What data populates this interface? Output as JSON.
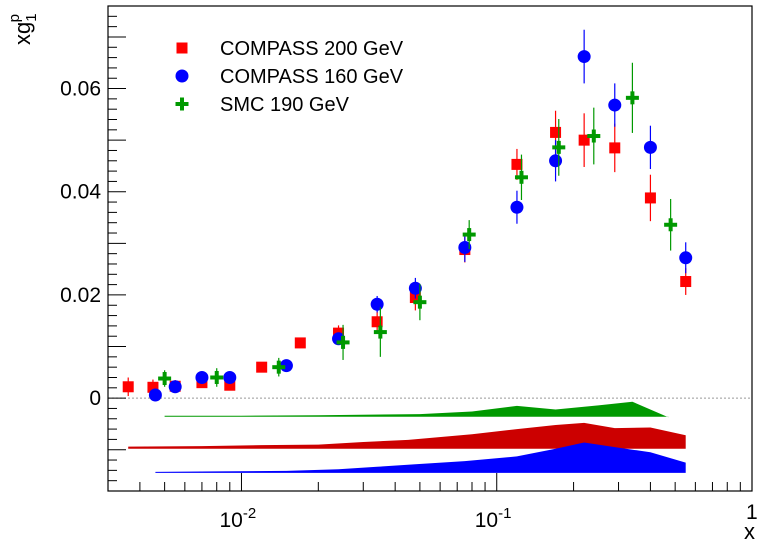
{
  "chart_data": {
    "type": "scatter",
    "title": "",
    "xlabel": "x",
    "ylabel": "xg",
    "ylabel_super": "p",
    "ylabel_sub": "1",
    "xscale": "log",
    "xlim": [
      0.003,
      1
    ],
    "ylim": [
      -0.018,
      0.076
    ],
    "grid": false,
    "legend_position": "top-left",
    "x_tick_labels": [
      {
        "x": 0.01,
        "base": "10",
        "exp": "-2"
      },
      {
        "x": 0.1,
        "base": "10",
        "exp": "-1"
      },
      {
        "x": 1,
        "base": "1",
        "exp": ""
      }
    ],
    "y_ticks": [
      {
        "y": 0,
        "label": "0"
      },
      {
        "y": 0.02,
        "label": "0.02"
      },
      {
        "y": 0.04,
        "label": "0.04"
      },
      {
        "y": 0.06,
        "label": "0.06"
      }
    ],
    "series": [
      {
        "name": "COMPASS 200 GeV",
        "color": "#ff0000",
        "marker": "square",
        "points": [
          {
            "x": 0.0036,
            "y": 0.0022,
            "err": 0.0018
          },
          {
            "x": 0.0045,
            "y": 0.0021,
            "err": 0.0015
          },
          {
            "x": 0.0055,
            "y": 0.0023,
            "err": 0.0012
          },
          {
            "x": 0.007,
            "y": 0.003,
            "err": 0.001
          },
          {
            "x": 0.009,
            "y": 0.0025,
            "err": 0.001
          },
          {
            "x": 0.012,
            "y": 0.006,
            "err": 0.001
          },
          {
            "x": 0.017,
            "y": 0.0107,
            "err": 0.001
          },
          {
            "x": 0.024,
            "y": 0.0126,
            "err": 0.0015
          },
          {
            "x": 0.034,
            "y": 0.0148,
            "err": 0.002
          },
          {
            "x": 0.048,
            "y": 0.0195,
            "err": 0.0025
          },
          {
            "x": 0.075,
            "y": 0.0288,
            "err": 0.0025
          },
          {
            "x": 0.12,
            "y": 0.0453,
            "err": 0.003
          },
          {
            "x": 0.17,
            "y": 0.0515,
            "err": 0.0042
          },
          {
            "x": 0.22,
            "y": 0.05,
            "err": 0.0052
          },
          {
            "x": 0.29,
            "y": 0.0485,
            "err": 0.0047
          },
          {
            "x": 0.4,
            "y": 0.0388,
            "err": 0.0045
          },
          {
            "x": 0.55,
            "y": 0.0226,
            "err": 0.0026
          }
        ]
      },
      {
        "name": "COMPASS 160 GeV",
        "color": "#0000ff",
        "marker": "circle",
        "points": [
          {
            "x": 0.0046,
            "y": 0.0006,
            "err": 0.0012
          },
          {
            "x": 0.0055,
            "y": 0.0022,
            "err": 0.001
          },
          {
            "x": 0.007,
            "y": 0.004,
            "err": 0.001
          },
          {
            "x": 0.009,
            "y": 0.004,
            "err": 0.0009
          },
          {
            "x": 0.015,
            "y": 0.0063,
            "err": 0.001
          },
          {
            "x": 0.024,
            "y": 0.0115,
            "err": 0.0012
          },
          {
            "x": 0.034,
            "y": 0.0182,
            "err": 0.0016
          },
          {
            "x": 0.048,
            "y": 0.0213,
            "err": 0.002
          },
          {
            "x": 0.075,
            "y": 0.0292,
            "err": 0.0028
          },
          {
            "x": 0.12,
            "y": 0.037,
            "err": 0.0032
          },
          {
            "x": 0.17,
            "y": 0.046,
            "err": 0.004
          },
          {
            "x": 0.22,
            "y": 0.0662,
            "err": 0.0052
          },
          {
            "x": 0.29,
            "y": 0.0568,
            "err": 0.0042
          },
          {
            "x": 0.4,
            "y": 0.0486,
            "err": 0.0042
          },
          {
            "x": 0.55,
            "y": 0.0272,
            "err": 0.003
          }
        ]
      },
      {
        "name": "SMC 190 GeV",
        "color": "#009900",
        "marker": "cross",
        "points": [
          {
            "x": 0.005,
            "y": 0.0038,
            "err": 0.0016
          },
          {
            "x": 0.008,
            "y": 0.004,
            "err": 0.0018
          },
          {
            "x": 0.014,
            "y": 0.006,
            "err": 0.0018
          },
          {
            "x": 0.025,
            "y": 0.0108,
            "err": 0.0034
          },
          {
            "x": 0.035,
            "y": 0.0128,
            "err": 0.0048
          },
          {
            "x": 0.05,
            "y": 0.0186,
            "err": 0.0035
          },
          {
            "x": 0.078,
            "y": 0.0317,
            "err": 0.0028
          },
          {
            "x": 0.125,
            "y": 0.0428,
            "err": 0.0044
          },
          {
            "x": 0.175,
            "y": 0.0486,
            "err": 0.0055
          },
          {
            "x": 0.24,
            "y": 0.0508,
            "err": 0.0055
          },
          {
            "x": 0.34,
            "y": 0.0582,
            "err": 0.0068
          },
          {
            "x": 0.48,
            "y": 0.0336,
            "err": 0.005
          }
        ]
      }
    ],
    "systematic_bands": [
      {
        "series": "SMC 190 GeV",
        "color": "#009900",
        "baseline": -0.0036,
        "x": [
          0.005,
          0.01,
          0.02,
          0.05,
          0.08,
          0.12,
          0.17,
          0.25,
          0.34,
          0.47
        ],
        "top": [
          -0.0034,
          -0.0034,
          -0.0033,
          -0.0031,
          -0.0026,
          -0.0015,
          -0.0022,
          -0.0014,
          -0.0007,
          -0.0037
        ]
      },
      {
        "series": "COMPASS 200 GeV",
        "color": "#cc0000",
        "baseline": -0.0098,
        "x": [
          0.0036,
          0.007,
          0.012,
          0.02,
          0.03,
          0.045,
          0.08,
          0.12,
          0.17,
          0.22,
          0.29,
          0.4,
          0.55
        ],
        "top": [
          -0.0094,
          -0.0093,
          -0.0091,
          -0.009,
          -0.0085,
          -0.0081,
          -0.007,
          -0.006,
          -0.0052,
          -0.0048,
          -0.0058,
          -0.0057,
          -0.0072
        ]
      },
      {
        "series": "COMPASS 160 GeV",
        "color": "#0000ff",
        "baseline": -0.0145,
        "x": [
          0.0046,
          0.008,
          0.015,
          0.024,
          0.034,
          0.048,
          0.075,
          0.12,
          0.17,
          0.22,
          0.29,
          0.4,
          0.55
        ],
        "top": [
          -0.0143,
          -0.0142,
          -0.0141,
          -0.0138,
          -0.0133,
          -0.0128,
          -0.0122,
          -0.0113,
          -0.0098,
          -0.0086,
          -0.0095,
          -0.0105,
          -0.0125
        ]
      }
    ]
  }
}
